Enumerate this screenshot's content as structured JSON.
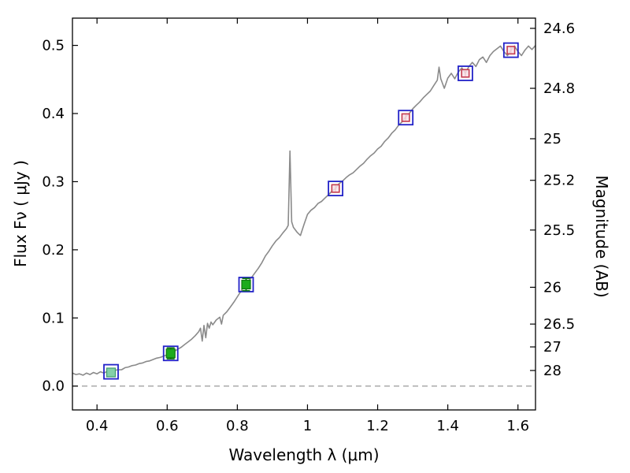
{
  "figure": {
    "xlabel": "Wavelength  λ (μm)",
    "ylabel_left": "Flux  Fν  ( μJy )",
    "ylabel_right": "Magnitude (AB)",
    "background": "#ffffff",
    "axis_color": "#000000"
  },
  "chart_data": {
    "type": "line",
    "title": "",
    "xlabel": "Wavelength λ (μm)",
    "ylabel": "Flux Fν (μJy)",
    "ylabel_right": "Magnitude (AB)",
    "xlim": [
      0.33,
      1.65
    ],
    "ylim": [
      -0.035,
      0.54
    ],
    "grid": false,
    "legend": "none",
    "x_ticks": [
      0.4,
      0.6,
      0.8,
      1.0,
      1.2,
      1.4,
      1.6
    ],
    "x_tick_labels": [
      "0.4",
      "0.6",
      "0.8",
      "1",
      "1.2",
      "1.4",
      "1.6"
    ],
    "y_ticks_left": [
      0.0,
      0.1,
      0.2,
      0.3,
      0.4,
      0.5
    ],
    "y_tick_labels_left": [
      "0.0",
      "0.1",
      "0.2",
      "0.3",
      "0.4",
      "0.5"
    ],
    "y_ticks_right": [
      {
        "label": "24.6",
        "flux": 0.525
      },
      {
        "label": "24.8",
        "flux": 0.437
      },
      {
        "label": "25",
        "flux": 0.363
      },
      {
        "label": "25.2",
        "flux": 0.302
      },
      {
        "label": "25.5",
        "flux": 0.229
      },
      {
        "label": "26",
        "flux": 0.145
      },
      {
        "label": "26.5",
        "flux": 0.091
      },
      {
        "label": "27",
        "flux": 0.0575
      },
      {
        "label": "28",
        "flux": 0.0229
      }
    ],
    "zero_line": {
      "y": 0.0,
      "color": "#9a9a9a",
      "dash": "7 5"
    },
    "spectrum": {
      "name": "model-spectrum",
      "color": "#8a8a8a",
      "width": 1.6,
      "points": [
        [
          0.33,
          0.019
        ],
        [
          0.34,
          0.017
        ],
        [
          0.35,
          0.018
        ],
        [
          0.36,
          0.016
        ],
        [
          0.37,
          0.019
        ],
        [
          0.38,
          0.017
        ],
        [
          0.39,
          0.02
        ],
        [
          0.4,
          0.018
        ],
        [
          0.41,
          0.021
        ],
        [
          0.42,
          0.019
        ],
        [
          0.43,
          0.022
        ],
        [
          0.44,
          0.02
        ],
        [
          0.45,
          0.023
        ],
        [
          0.46,
          0.024
        ],
        [
          0.47,
          0.024
        ],
        [
          0.48,
          0.027
        ],
        [
          0.49,
          0.028
        ],
        [
          0.5,
          0.03
        ],
        [
          0.51,
          0.031
        ],
        [
          0.52,
          0.033
        ],
        [
          0.53,
          0.034
        ],
        [
          0.54,
          0.036
        ],
        [
          0.55,
          0.037
        ],
        [
          0.56,
          0.039
        ],
        [
          0.57,
          0.041
        ],
        [
          0.58,
          0.042
        ],
        [
          0.59,
          0.044
        ],
        [
          0.6,
          0.046
        ],
        [
          0.61,
          0.049
        ],
        [
          0.62,
          0.051
        ],
        [
          0.63,
          0.054
        ],
        [
          0.64,
          0.057
        ],
        [
          0.65,
          0.061
        ],
        [
          0.66,
          0.065
        ],
        [
          0.67,
          0.069
        ],
        [
          0.68,
          0.074
        ],
        [
          0.69,
          0.08
        ],
        [
          0.695,
          0.085
        ],
        [
          0.7,
          0.066
        ],
        [
          0.705,
          0.089
        ],
        [
          0.71,
          0.071
        ],
        [
          0.715,
          0.092
        ],
        [
          0.72,
          0.085
        ],
        [
          0.725,
          0.094
        ],
        [
          0.73,
          0.09
        ],
        [
          0.74,
          0.097
        ],
        [
          0.75,
          0.101
        ],
        [
          0.755,
          0.091
        ],
        [
          0.76,
          0.104
        ],
        [
          0.77,
          0.109
        ],
        [
          0.78,
          0.116
        ],
        [
          0.79,
          0.123
        ],
        [
          0.8,
          0.131
        ],
        [
          0.81,
          0.139
        ],
        [
          0.82,
          0.147
        ],
        [
          0.83,
          0.153
        ],
        [
          0.84,
          0.159
        ],
        [
          0.85,
          0.166
        ],
        [
          0.86,
          0.173
        ],
        [
          0.87,
          0.181
        ],
        [
          0.88,
          0.191
        ],
        [
          0.89,
          0.198
        ],
        [
          0.9,
          0.206
        ],
        [
          0.91,
          0.213
        ],
        [
          0.92,
          0.218
        ],
        [
          0.93,
          0.225
        ],
        [
          0.94,
          0.231
        ],
        [
          0.945,
          0.236
        ],
        [
          0.95,
          0.345
        ],
        [
          0.955,
          0.241
        ],
        [
          0.96,
          0.233
        ],
        [
          0.97,
          0.226
        ],
        [
          0.98,
          0.221
        ],
        [
          0.99,
          0.237
        ],
        [
          1.0,
          0.252
        ],
        [
          1.01,
          0.258
        ],
        [
          1.02,
          0.262
        ],
        [
          1.03,
          0.268
        ],
        [
          1.04,
          0.271
        ],
        [
          1.05,
          0.276
        ],
        [
          1.06,
          0.281
        ],
        [
          1.07,
          0.286
        ],
        [
          1.08,
          0.29
        ],
        [
          1.09,
          0.297
        ],
        [
          1.1,
          0.301
        ],
        [
          1.11,
          0.306
        ],
        [
          1.12,
          0.31
        ],
        [
          1.13,
          0.313
        ],
        [
          1.14,
          0.318
        ],
        [
          1.15,
          0.323
        ],
        [
          1.16,
          0.327
        ],
        [
          1.17,
          0.333
        ],
        [
          1.18,
          0.338
        ],
        [
          1.19,
          0.342
        ],
        [
          1.2,
          0.348
        ],
        [
          1.21,
          0.352
        ],
        [
          1.22,
          0.359
        ],
        [
          1.23,
          0.364
        ],
        [
          1.24,
          0.371
        ],
        [
          1.25,
          0.376
        ],
        [
          1.26,
          0.383
        ],
        [
          1.27,
          0.388
        ],
        [
          1.28,
          0.395
        ],
        [
          1.29,
          0.4
        ],
        [
          1.3,
          0.407
        ],
        [
          1.31,
          0.412
        ],
        [
          1.32,
          0.417
        ],
        [
          1.33,
          0.423
        ],
        [
          1.34,
          0.428
        ],
        [
          1.35,
          0.433
        ],
        [
          1.36,
          0.441
        ],
        [
          1.37,
          0.449
        ],
        [
          1.375,
          0.468
        ],
        [
          1.38,
          0.451
        ],
        [
          1.39,
          0.437
        ],
        [
          1.4,
          0.452
        ],
        [
          1.41,
          0.459
        ],
        [
          1.42,
          0.451
        ],
        [
          1.43,
          0.461
        ],
        [
          1.44,
          0.467
        ],
        [
          1.45,
          0.459
        ],
        [
          1.46,
          0.469
        ],
        [
          1.47,
          0.475
        ],
        [
          1.48,
          0.469
        ],
        [
          1.49,
          0.479
        ],
        [
          1.5,
          0.483
        ],
        [
          1.51,
          0.475
        ],
        [
          1.52,
          0.485
        ],
        [
          1.53,
          0.491
        ],
        [
          1.54,
          0.495
        ],
        [
          1.55,
          0.499
        ],
        [
          1.56,
          0.491
        ],
        [
          1.57,
          0.485
        ],
        [
          1.58,
          0.493
        ],
        [
          1.59,
          0.499
        ],
        [
          1.6,
          0.491
        ],
        [
          1.61,
          0.485
        ],
        [
          1.62,
          0.493
        ],
        [
          1.63,
          0.499
        ],
        [
          1.64,
          0.494
        ],
        [
          1.65,
          0.5
        ]
      ]
    },
    "model_photometry": {
      "name": "model-photometry",
      "marker": "open-square",
      "color": "#2222c8",
      "size": 18,
      "stroke_width": 1.8,
      "points": [
        [
          0.44,
          0.021
        ],
        [
          0.61,
          0.048
        ],
        [
          0.825,
          0.149
        ],
        [
          1.08,
          0.29
        ],
        [
          1.28,
          0.394
        ],
        [
          1.45,
          0.459
        ],
        [
          1.58,
          0.493
        ]
      ]
    },
    "observed_photometry": {
      "name": "observed-photometry",
      "marker": "filled-square",
      "size": 11,
      "points": [
        {
          "x": 0.44,
          "y": 0.02,
          "err": 0.004,
          "fill": "#84d0a8",
          "stroke": "#3f9e6d"
        },
        {
          "x": 0.61,
          "y": 0.048,
          "err": 0.008,
          "fill": "#1cab1c",
          "stroke": "#0d7a0d"
        },
        {
          "x": 0.825,
          "y": 0.149,
          "err": 0.009,
          "fill": "#1cab1c",
          "stroke": "#0d7a0d"
        }
      ]
    },
    "predicted_photometry": {
      "name": "predicted-photometry",
      "marker": "open-square",
      "size": 9.5,
      "stroke": "#c43b50",
      "fill": "#f7e1e6",
      "points": [
        {
          "x": 1.08,
          "y": 0.29,
          "err": 0.005
        },
        {
          "x": 1.28,
          "y": 0.394,
          "err": 0.005
        },
        {
          "x": 1.45,
          "y": 0.459,
          "err": 0.005
        },
        {
          "x": 1.58,
          "y": 0.493,
          "err": 0.005
        }
      ]
    }
  }
}
